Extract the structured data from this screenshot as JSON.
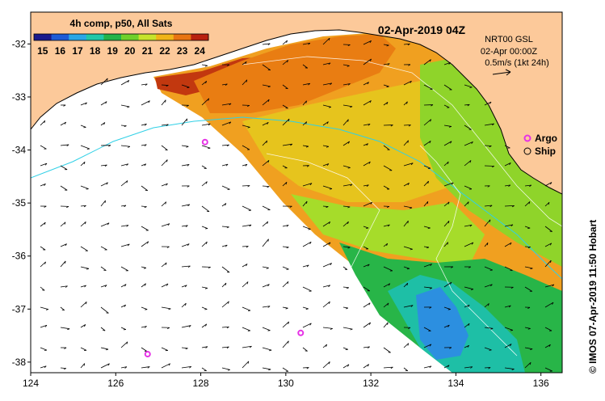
{
  "map": {
    "title": "02-Apr-2019 04Z",
    "credit": "© IMOS 07-Apr-2019 11:50 Hobart",
    "colorbar": {
      "title": "4h comp, p50, All Sats",
      "ticks": [
        "15",
        "16",
        "17",
        "18",
        "19",
        "20",
        "21",
        "22",
        "23",
        "24"
      ],
      "range": [
        14.5,
        24.5
      ],
      "colors": [
        "#1a1a8c",
        "#1e5bd6",
        "#2aa6e6",
        "#21c7a8",
        "#22b34a",
        "#6fd02a",
        "#c7e32b",
        "#f0b418",
        "#e87412",
        "#b8200f"
      ]
    },
    "current_info": {
      "line1": "NRT00 GSL",
      "line2": "02-Apr 00:00Z",
      "scale_label": "0.5m/s (1kt 24h)"
    },
    "legend": {
      "argo_label": "Argo",
      "ship_label": "Ship",
      "argo_color": "#e632e6"
    },
    "axes": {
      "lon_ticks": [
        "124",
        "126",
        "128",
        "130",
        "132",
        "134",
        "136"
      ],
      "lat_ticks": [
        "-32",
        "-33",
        "-34",
        "-35",
        "-36",
        "-37",
        "-38"
      ],
      "lon_range": [
        124,
        136.5
      ],
      "lat_range": [
        -38.2,
        -31.4
      ]
    },
    "argo_floats": [
      {
        "lon": 128.1,
        "lat": -33.85
      },
      {
        "lon": 126.75,
        "lat": -37.85
      },
      {
        "lon": 130.35,
        "lat": -37.45
      }
    ],
    "land_color": "#fcc99a"
  }
}
